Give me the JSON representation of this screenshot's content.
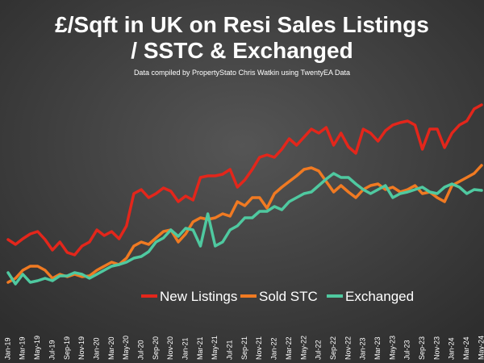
{
  "chart_data": {
    "type": "line",
    "title": [
      "£/Sqft in UK on Resi Sales  Listings",
      "/ SSTC & Exchanged"
    ],
    "subtitle": "Data compiled by PropertyStato Chris Watkin using TwentyEA Data",
    "categories": [
      "Jan-19",
      null,
      "Mar-19",
      null,
      "May-19",
      null,
      "Jul-19",
      null,
      "Sep-19",
      null,
      "Nov-19",
      null,
      "Jan-20",
      null,
      "Mar-20",
      null,
      "May-20",
      null,
      "Jul-20",
      null,
      "Sep-20",
      null,
      "Nov-20",
      null,
      "Jan-21",
      null,
      "Mar-21",
      null,
      "May-21",
      null,
      "Jul-21",
      null,
      "Sep-21",
      null,
      "Nov-21",
      null,
      "Jan-22",
      null,
      "Mar-22",
      null,
      "May-22",
      null,
      "Jul-22",
      null,
      "Sep-22",
      null,
      "Nov-22",
      null,
      "Jan-23",
      null,
      "Mar-23",
      null,
      "May-23",
      null,
      "Jul-23",
      null,
      "Sep-23",
      null,
      "Nov-23",
      null,
      "Jan-24",
      null,
      "Mar-24",
      null,
      "May-24"
    ],
    "series": [
      {
        "name": "New Listings",
        "color": "#e3261b",
        "values": [
          93,
          87,
          94,
          100,
          103,
          93,
          80,
          90,
          77,
          74,
          85,
          90,
          105,
          98,
          103,
          94,
          110,
          150,
          155,
          145,
          150,
          157,
          153,
          140,
          147,
          142,
          170,
          172,
          172,
          174,
          180,
          158,
          167,
          180,
          195,
          198,
          195,
          205,
          218,
          210,
          220,
          230,
          225,
          232,
          210,
          225,
          208,
          200,
          230,
          225,
          215,
          228,
          235,
          238,
          240,
          235,
          205,
          230,
          230,
          207,
          225,
          235,
          240,
          255,
          260
        ]
      },
      {
        "name": "Sold STC",
        "color": "#f07a22",
        "values": [
          40,
          45,
          55,
          60,
          60,
          55,
          45,
          50,
          47,
          50,
          47,
          48,
          55,
          60,
          65,
          62,
          70,
          85,
          90,
          87,
          95,
          103,
          105,
          90,
          100,
          115,
          120,
          118,
          120,
          125,
          122,
          140,
          135,
          145,
          145,
          132,
          150,
          158,
          165,
          172,
          180,
          182,
          178,
          165,
          152,
          160,
          152,
          145,
          155,
          160,
          162,
          155,
          158,
          152,
          155,
          160,
          150,
          152,
          145,
          140,
          160,
          165,
          170,
          175,
          185
        ]
      },
      {
        "name": "Exchanged",
        "color": "#4fc9a0",
        "values": [
          52,
          38,
          50,
          40,
          42,
          45,
          42,
          48,
          48,
          52,
          50,
          45,
          50,
          55,
          60,
          62,
          65,
          70,
          72,
          78,
          90,
          95,
          105,
          97,
          107,
          105,
          85,
          125,
          85,
          90,
          105,
          110,
          120,
          120,
          128,
          128,
          134,
          130,
          140,
          145,
          150,
          152,
          160,
          168,
          175,
          170,
          170,
          162,
          155,
          150,
          155,
          160,
          145,
          150,
          152,
          155,
          158,
          152,
          150,
          158,
          162,
          158,
          150,
          155,
          154
        ]
      }
    ],
    "ylim": [
      0,
      300
    ]
  }
}
